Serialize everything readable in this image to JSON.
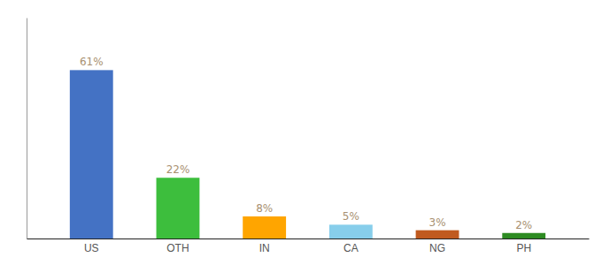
{
  "chart_data": {
    "type": "bar",
    "categories": [
      "US",
      "OTH",
      "IN",
      "CA",
      "NG",
      "PH"
    ],
    "values": [
      61,
      22,
      8,
      5,
      3,
      2
    ],
    "value_labels": [
      "61%",
      "22%",
      "8%",
      "5%",
      "3%",
      "2%"
    ],
    "colors": [
      "#4472C4",
      "#3DBE3D",
      "#FFA500",
      "#87CEEB",
      "#C05A1F",
      "#2D8B22"
    ],
    "ylim": [
      0,
      80
    ],
    "data_labels": true,
    "tick_labels": "x"
  }
}
